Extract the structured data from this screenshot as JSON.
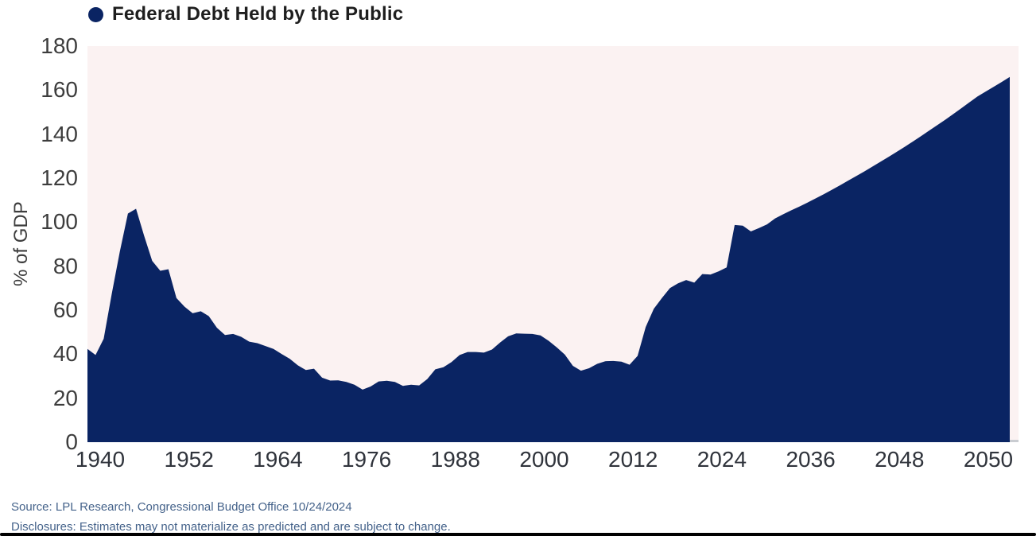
{
  "legend": {
    "label": "Federal Debt Held by the Public"
  },
  "colors": {
    "series_fill": "#0a2463",
    "plot_background": "#fbf2f2",
    "baseline_axis": "#c9ccd1",
    "footer_text": "#44628a"
  },
  "footer": {
    "source": "Source: LPL Research, Congressional Budget Office 10/24/2024",
    "disclosures": "Disclosures: Estimates may not materialize as predicted and are subject to change."
  },
  "chart_data": {
    "type": "area",
    "title": "Federal Debt Held by the Public",
    "xlabel": "",
    "ylabel": "% of GDP",
    "ylim": [
      0,
      180
    ],
    "xlim": [
      1940,
      2054
    ],
    "grid": false,
    "legend_position": "top-left",
    "yticks": [
      180,
      160,
      140,
      120,
      100,
      80,
      60,
      40,
      20,
      0
    ],
    "xtick_labels": [
      "1940",
      "1952",
      "1964",
      "1976",
      "1988",
      "2000",
      "2012",
      "2024",
      "2036",
      "2048",
      "2050"
    ],
    "series": [
      {
        "name": "Federal Debt Held by the Public",
        "units": "% of GDP",
        "points": [
          [
            1940,
            42.4
          ],
          [
            1941,
            39.6
          ],
          [
            1942,
            47.0
          ],
          [
            1943,
            67.3
          ],
          [
            1944,
            86.6
          ],
          [
            1945,
            103.9
          ],
          [
            1946,
            106.1
          ],
          [
            1947,
            93.9
          ],
          [
            1948,
            82.4
          ],
          [
            1949,
            77.9
          ],
          [
            1950,
            78.6
          ],
          [
            1951,
            65.5
          ],
          [
            1952,
            61.6
          ],
          [
            1953,
            58.6
          ],
          [
            1954,
            59.5
          ],
          [
            1955,
            57.3
          ],
          [
            1956,
            52.0
          ],
          [
            1957,
            48.7
          ],
          [
            1958,
            49.2
          ],
          [
            1959,
            47.9
          ],
          [
            1960,
            45.7
          ],
          [
            1961,
            45.0
          ],
          [
            1962,
            43.7
          ],
          [
            1963,
            42.4
          ],
          [
            1964,
            40.1
          ],
          [
            1965,
            37.9
          ],
          [
            1966,
            34.9
          ],
          [
            1967,
            32.8
          ],
          [
            1968,
            33.4
          ],
          [
            1969,
            29.3
          ],
          [
            1970,
            28.0
          ],
          [
            1971,
            28.1
          ],
          [
            1972,
            27.4
          ],
          [
            1973,
            26.1
          ],
          [
            1974,
            23.9
          ],
          [
            1975,
            25.3
          ],
          [
            1976,
            27.6
          ],
          [
            1977,
            27.9
          ],
          [
            1978,
            27.4
          ],
          [
            1979,
            25.6
          ],
          [
            1980,
            26.1
          ],
          [
            1981,
            25.8
          ],
          [
            1982,
            28.7
          ],
          [
            1983,
            33.1
          ],
          [
            1984,
            34.1
          ],
          [
            1985,
            36.4
          ],
          [
            1986,
            39.6
          ],
          [
            1987,
            41.0
          ],
          [
            1988,
            41.0
          ],
          [
            1989,
            40.7
          ],
          [
            1990,
            42.1
          ],
          [
            1991,
            45.3
          ],
          [
            1992,
            48.1
          ],
          [
            1993,
            49.4
          ],
          [
            1994,
            49.3
          ],
          [
            1995,
            49.2
          ],
          [
            1996,
            48.5
          ],
          [
            1997,
            46.1
          ],
          [
            1998,
            43.1
          ],
          [
            1999,
            39.8
          ],
          [
            2000,
            34.7
          ],
          [
            2001,
            32.5
          ],
          [
            2002,
            33.6
          ],
          [
            2003,
            35.6
          ],
          [
            2004,
            36.8
          ],
          [
            2005,
            36.9
          ],
          [
            2006,
            36.6
          ],
          [
            2007,
            35.2
          ],
          [
            2008,
            39.2
          ],
          [
            2009,
            52.3
          ],
          [
            2010,
            60.6
          ],
          [
            2011,
            65.5
          ],
          [
            2012,
            70.0
          ],
          [
            2013,
            72.2
          ],
          [
            2014,
            73.7
          ],
          [
            2015,
            72.5
          ],
          [
            2016,
            76.4
          ],
          [
            2017,
            76.2
          ],
          [
            2018,
            77.6
          ],
          [
            2019,
            79.4
          ],
          [
            2020,
            98.7
          ],
          [
            2021,
            98.4
          ],
          [
            2022,
            95.8
          ],
          [
            2023,
            97.3
          ],
          [
            2024,
            99.0
          ],
          [
            2025,
            101.7
          ],
          [
            2026,
            103.6
          ],
          [
            2027,
            105.4
          ],
          [
            2028,
            107.1
          ],
          [
            2029,
            108.9
          ],
          [
            2030,
            110.8
          ],
          [
            2031,
            112.7
          ],
          [
            2032,
            114.7
          ],
          [
            2033,
            116.7
          ],
          [
            2034,
            118.8
          ],
          [
            2035,
            120.9
          ],
          [
            2036,
            123.0
          ],
          [
            2037,
            125.2
          ],
          [
            2038,
            127.4
          ],
          [
            2039,
            129.6
          ],
          [
            2040,
            131.9
          ],
          [
            2041,
            134.2
          ],
          [
            2042,
            136.6
          ],
          [
            2043,
            139.0
          ],
          [
            2044,
            141.5
          ],
          [
            2045,
            144.0
          ],
          [
            2046,
            146.5
          ],
          [
            2047,
            149.1
          ],
          [
            2048,
            151.7
          ],
          [
            2049,
            154.4
          ],
          [
            2050,
            157.1
          ],
          [
            2051,
            159.3
          ],
          [
            2052,
            161.5
          ],
          [
            2053,
            163.7
          ],
          [
            2054,
            166.0
          ]
        ]
      }
    ]
  }
}
